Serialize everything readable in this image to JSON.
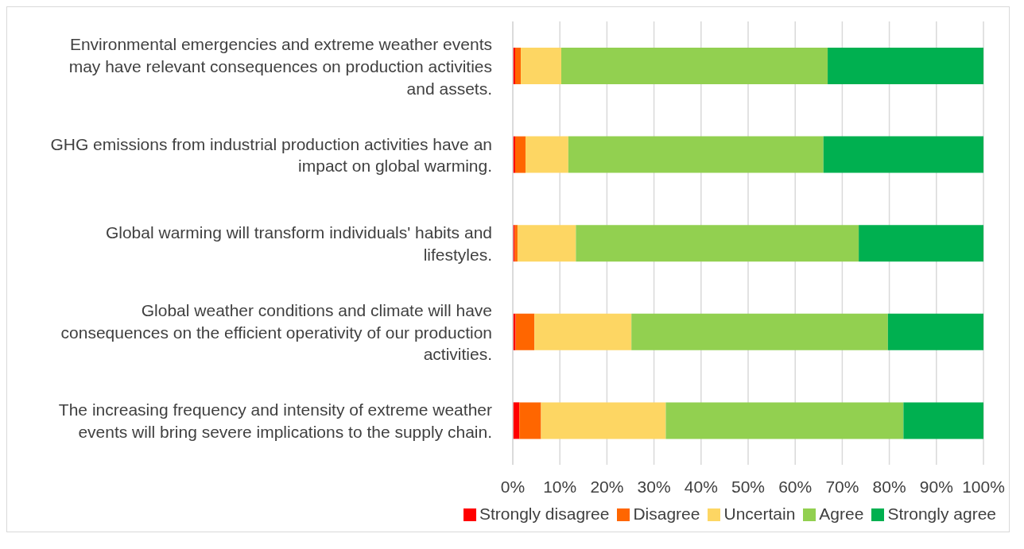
{
  "chart_data": {
    "type": "bar",
    "orientation": "horizontal",
    "stacked": true,
    "grid": "x",
    "legend": "bottom",
    "categories": [
      "Environmental emergencies and extreme weather events may have relevant consequences on production activities and assets.",
      "GHG emissions from industrial production activities have an impact on global warming.",
      "Global warming will transform individuals' habits and lifestyles.",
      "Global weather conditions and climate will have consequences on the efficient operativity of our production activities.",
      "The increasing frequency and intensity of extreme weather events will bring severe implications to the supply chain."
    ],
    "series": [
      {
        "name": "Strongly disagree",
        "color": "#ff0000",
        "values": [
          0.5,
          0.5,
          0.4,
          0.6,
          1.4
        ]
      },
      {
        "name": "Disagree",
        "color": "#ff6600",
        "values": [
          1.2,
          2.2,
          0.6,
          4.0,
          4.6
        ]
      },
      {
        "name": "Uncertain",
        "color": "#fdd663",
        "values": [
          8.6,
          9.1,
          12.4,
          20.6,
          26.5
        ]
      },
      {
        "name": "Agree",
        "color": "#92d050",
        "values": [
          56.6,
          54.2,
          60.1,
          54.5,
          50.5
        ]
      },
      {
        "name": "Strongly agree",
        "color": "#00b050",
        "values": [
          33.1,
          34.0,
          26.5,
          20.3,
          17.0
        ]
      }
    ],
    "xlim": [
      0,
      100
    ],
    "xticks": [
      {
        "value": 0,
        "label": "0%"
      },
      {
        "value": 10,
        "label": "10%"
      },
      {
        "value": 20,
        "label": "20%"
      },
      {
        "value": 30,
        "label": "30%"
      },
      {
        "value": 40,
        "label": "40%"
      },
      {
        "value": 50,
        "label": "50%"
      },
      {
        "value": 60,
        "label": "60%"
      },
      {
        "value": 70,
        "label": "70%"
      },
      {
        "value": 80,
        "label": "80%"
      },
      {
        "value": 90,
        "label": "90%"
      },
      {
        "value": 100,
        "label": "100%"
      }
    ]
  }
}
